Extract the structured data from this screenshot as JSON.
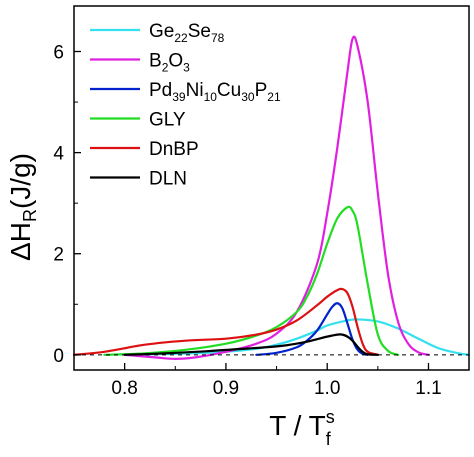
{
  "chart_data": {
    "type": "line",
    "title": "",
    "xlabel": {
      "main": "T / T",
      "sub": "f",
      "sup": "s"
    },
    "ylabel": {
      "main": "ΔH",
      "sub": "R",
      "rest": "(J/g)"
    },
    "xlim": [
      0.75,
      1.14
    ],
    "ylim": [
      -0.3,
      6.9
    ],
    "x_ticks": [
      0.8,
      0.9,
      1.0,
      1.1
    ],
    "x_tick_labels": [
      "0.8",
      "0.9",
      "1.0",
      "1.1"
    ],
    "y_ticks": [
      0,
      2,
      4,
      6
    ],
    "y_tick_labels": [
      "0",
      "2",
      "4",
      "6"
    ],
    "grid": false,
    "legend_position": "top-left",
    "reference_line": {
      "y": 0,
      "style": "dashed"
    },
    "series": [
      {
        "name_parts": [
          {
            "t": "Ge",
            "s": ""
          },
          {
            "t": "22",
            "s": "sub"
          },
          {
            "t": "Se",
            "s": ""
          },
          {
            "t": "78",
            "s": "sub"
          }
        ],
        "color": "#33e0ee",
        "x": [
          0.8,
          0.85,
          0.9,
          0.93,
          0.95,
          0.97,
          0.99,
          1.0,
          1.02,
          1.03,
          1.05,
          1.07,
          1.09,
          1.11,
          1.13,
          1.14
        ],
        "y": [
          0.0,
          0.02,
          0.06,
          0.12,
          0.2,
          0.32,
          0.48,
          0.58,
          0.68,
          0.7,
          0.66,
          0.52,
          0.32,
          0.13,
          0.03,
          0.0
        ]
      },
      {
        "name_parts": [
          {
            "t": "B",
            "s": ""
          },
          {
            "t": "2",
            "s": "sub"
          },
          {
            "t": "O",
            "s": ""
          },
          {
            "t": "3",
            "s": "sub"
          }
        ],
        "color": "#e020e0",
        "x": [
          0.8,
          0.83,
          0.85,
          0.87,
          0.9,
          0.93,
          0.95,
          0.97,
          0.99,
          1.0,
          1.01,
          1.02,
          1.025,
          1.03,
          1.04,
          1.05,
          1.06,
          1.07,
          1.08,
          1.09,
          1.1
        ],
        "y": [
          0.0,
          -0.05,
          -0.08,
          -0.05,
          0.06,
          0.22,
          0.42,
          0.85,
          1.8,
          2.8,
          4.1,
          5.6,
          6.25,
          6.1,
          5.0,
          3.2,
          1.6,
          0.65,
          0.22,
          0.05,
          0.0
        ]
      },
      {
        "name_parts": [
          {
            "t": "Pd",
            "s": ""
          },
          {
            "t": "39",
            "s": "sub"
          },
          {
            "t": "Ni",
            "s": ""
          },
          {
            "t": "10",
            "s": "sub"
          },
          {
            "t": "Cu",
            "s": ""
          },
          {
            "t": "30",
            "s": "sub"
          },
          {
            "t": "P",
            "s": ""
          },
          {
            "t": "21",
            "s": "sub"
          }
        ],
        "color": "#0022cc",
        "x": [
          0.93,
          0.95,
          0.97,
          0.98,
          0.99,
          1.0,
          1.005,
          1.01,
          1.015,
          1.02,
          1.025,
          1.03,
          1.035,
          1.04
        ],
        "y": [
          0.0,
          0.04,
          0.15,
          0.28,
          0.48,
          0.8,
          0.95,
          1.02,
          0.92,
          0.62,
          0.3,
          0.1,
          0.02,
          0.0
        ]
      },
      {
        "name_parts": [
          {
            "t": "GLY",
            "s": ""
          }
        ],
        "color": "#22dd22",
        "x": [
          0.78,
          0.82,
          0.86,
          0.9,
          0.93,
          0.95,
          0.97,
          0.98,
          0.99,
          1.0,
          1.01,
          1.02,
          1.025,
          1.03,
          1.04,
          1.05,
          1.06,
          1.07
        ],
        "y": [
          0.0,
          0.03,
          0.1,
          0.22,
          0.38,
          0.55,
          0.85,
          1.15,
          1.6,
          2.2,
          2.7,
          2.92,
          2.85,
          2.55,
          1.4,
          0.4,
          0.08,
          0.0
        ]
      },
      {
        "name_parts": [
          {
            "t": "DnBP",
            "s": ""
          }
        ],
        "color": "#dd1111",
        "x": [
          0.75,
          0.78,
          0.82,
          0.86,
          0.9,
          0.93,
          0.95,
          0.97,
          0.99,
          1.0,
          1.01,
          1.015,
          1.02,
          1.025,
          1.03,
          1.035,
          1.04,
          1.05
        ],
        "y": [
          0.0,
          0.06,
          0.2,
          0.28,
          0.32,
          0.4,
          0.5,
          0.68,
          0.98,
          1.15,
          1.28,
          1.3,
          1.22,
          0.95,
          0.55,
          0.22,
          0.06,
          0.0
        ]
      },
      {
        "name_parts": [
          {
            "t": "DLN",
            "s": ""
          }
        ],
        "color": "#000000",
        "x": [
          0.8,
          0.84,
          0.88,
          0.91,
          0.94,
          0.96,
          0.98,
          0.99,
          1.0,
          1.01,
          1.015,
          1.02,
          1.025,
          1.03,
          1.035,
          1.04,
          1.05
        ],
        "y": [
          0.0,
          0.03,
          0.07,
          0.11,
          0.15,
          0.19,
          0.26,
          0.31,
          0.36,
          0.4,
          0.4,
          0.36,
          0.28,
          0.16,
          0.06,
          0.01,
          0.0
        ]
      }
    ]
  }
}
